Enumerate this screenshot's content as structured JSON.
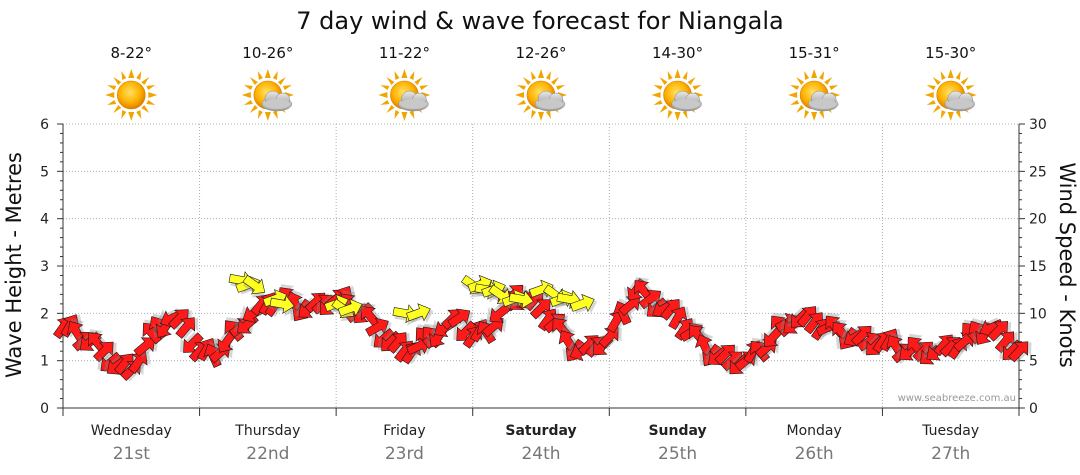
{
  "chart_data": {
    "type": "line",
    "title": "7 day wind & wave forecast for Niangala",
    "ylabel_left": "Wave Height - Metres",
    "ylabel_right": "Wind Speed - Knots",
    "ylim_left": [
      0,
      6
    ],
    "ylim_right": [
      0,
      30
    ],
    "left_ticks": [
      "0",
      "1",
      "2",
      "3",
      "4",
      "5",
      "6"
    ],
    "right_ticks": [
      "0",
      "5",
      "10",
      "15",
      "20",
      "25",
      "30"
    ],
    "credit": "www.seabreeze.com.au",
    "days": [
      {
        "name": "Wednesday",
        "date": "21st",
        "temp": "8-22°",
        "weather": "sunny",
        "bold": false
      },
      {
        "name": "Thursday",
        "date": "22nd",
        "temp": "10-26°",
        "weather": "partly-cloudy",
        "bold": false
      },
      {
        "name": "Friday",
        "date": "23rd",
        "temp": "11-22°",
        "weather": "partly-cloudy",
        "bold": false
      },
      {
        "name": "Saturday",
        "date": "24th",
        "temp": "12-26°",
        "weather": "partly-cloudy",
        "bold": true
      },
      {
        "name": "Sunday",
        "date": "25th",
        "temp": "14-30°",
        "weather": "partly-cloudy",
        "bold": true
      },
      {
        "name": "Monday",
        "date": "26th",
        "temp": "15-31°",
        "weather": "partly-cloudy",
        "bold": false
      },
      {
        "name": "Tuesday",
        "date": "27th",
        "temp": "15-30°",
        "weather": "partly-cloudy",
        "bold": false
      }
    ],
    "wind_series": {
      "name": "Wind Speed (knots)",
      "x_days": [
        0.0,
        0.1,
        0.2,
        0.3,
        0.4,
        0.5,
        0.6,
        0.7,
        0.8,
        0.9,
        1.0,
        1.1,
        1.2,
        1.3,
        1.4,
        1.5,
        1.6,
        1.7,
        1.8,
        1.9,
        2.0,
        2.1,
        2.2,
        2.3,
        2.4,
        2.5,
        2.6,
        2.7,
        2.8,
        2.9,
        3.0,
        3.1,
        3.2,
        3.3,
        3.4,
        3.5,
        3.6,
        3.7,
        3.8,
        3.9,
        4.0,
        4.1,
        4.2,
        4.3,
        4.4,
        4.5,
        4.6,
        4.7,
        4.8,
        4.9,
        5.0,
        5.1,
        5.2,
        5.3,
        5.4,
        5.5,
        5.6,
        5.7,
        5.8,
        5.9,
        6.0,
        6.1,
        6.2,
        6.3,
        6.4,
        6.5,
        6.6,
        6.7,
        6.8,
        6.9,
        7.0
      ],
      "values": [
        8.5,
        8.0,
        7.0,
        6.0,
        4.5,
        4.0,
        6.5,
        8.5,
        9.5,
        8.5,
        6.0,
        5.5,
        7.0,
        8.5,
        10.0,
        11.0,
        11.5,
        11.0,
        10.5,
        11.0,
        11.5,
        11.0,
        10.0,
        8.5,
        7.0,
        6.0,
        6.5,
        7.5,
        8.5,
        9.5,
        7.5,
        8.0,
        10.0,
        12.0,
        11.5,
        10.5,
        9.0,
        7.0,
        6.0,
        6.5,
        7.5,
        10.0,
        12.5,
        11.5,
        10.5,
        9.5,
        8.0,
        6.5,
        5.5,
        5.0,
        5.0,
        6.0,
        7.5,
        9.0,
        9.5,
        9.0,
        8.5,
        8.0,
        7.5,
        7.0,
        7.0,
        6.5,
        6.0,
        6.0,
        6.0,
        6.5,
        7.0,
        8.0,
        8.5,
        7.0,
        6.0
      ],
      "gust_x_days": [
        1.3,
        1.35,
        1.4,
        1.55,
        1.6,
        2.0,
        2.05,
        2.1,
        2.5,
        2.6,
        3.0,
        3.05,
        3.1,
        3.15,
        3.2,
        3.3,
        3.35,
        3.5,
        3.6,
        3.65,
        3.7,
        3.8
      ],
      "gust_values": [
        13.5,
        13.0,
        13.0,
        11.5,
        11.0,
        11.0,
        10.5,
        10.5,
        10.0,
        10.0,
        13.0,
        13.0,
        12.5,
        12.5,
        12.0,
        11.5,
        11.5,
        12.5,
        12.0,
        11.5,
        11.5,
        11.0
      ]
    }
  }
}
